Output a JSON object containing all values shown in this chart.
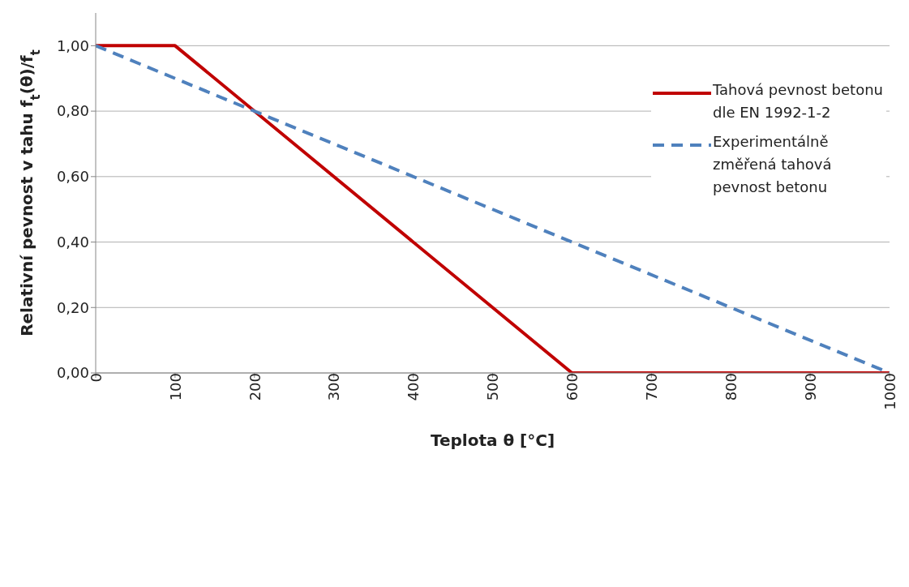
{
  "chart_data": {
    "type": "line",
    "xlabel": "Teplota θ [°C]",
    "ylabel": "Relativní pevnost v tahu f$_{t}$(θ)/f$_{t}$",
    "xlim": [
      0,
      1000
    ],
    "xticks": [
      0,
      100,
      200,
      300,
      400,
      500,
      600,
      700,
      800,
      900,
      1000
    ],
    "ylim": [
      0,
      1.1
    ],
    "yticks": [
      {
        "value": 0,
        "label": "0,00"
      },
      {
        "value": 0.2,
        "label": "0,20"
      },
      {
        "value": 0.4,
        "label": "0,40"
      },
      {
        "value": 0.6,
        "label": "0,60"
      },
      {
        "value": 0.8,
        "label": "0,80"
      },
      {
        "value": 1,
        "label": "1,00"
      }
    ],
    "grid": "y",
    "legend": "top right",
    "marker": "none",
    "series": [
      {
        "name": "Tahová pevnost betonu dle EN 1992-1-2",
        "color": "#c00000",
        "line_style": "solid",
        "x": [
          0,
          100,
          600,
          1000
        ],
        "values": [
          1,
          1,
          0,
          0
        ]
      },
      {
        "name": "Experimentálně změřená tahová pevnost betonu",
        "color": "#4f81bd",
        "line_style": "dashed",
        "x": [
          0,
          1000
        ],
        "values": [
          1,
          0
        ]
      }
    ]
  }
}
